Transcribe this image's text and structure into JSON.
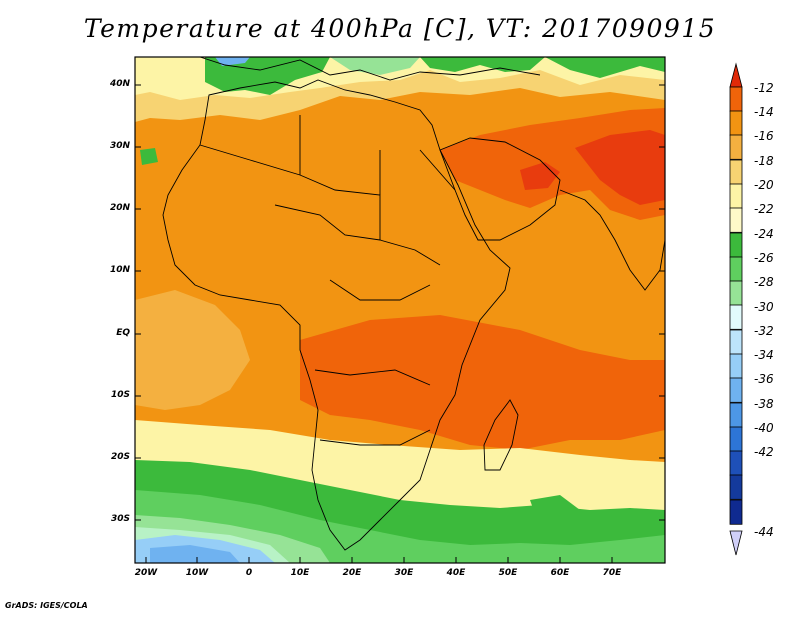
{
  "title": "Temperature at 400hPa [C], VT: 2017090915",
  "credit": "GrADS: IGES/COLA",
  "latitude_labels": [
    "40N",
    "30N",
    "20N",
    "10N",
    "EQ",
    "10S",
    "20S",
    "30S"
  ],
  "longitude_labels": [
    "20W",
    "10W",
    "0",
    "10E",
    "20E",
    "30E",
    "40E",
    "50E",
    "60E",
    "70E"
  ],
  "colorbar": {
    "labels": [
      "-12",
      "-14",
      "-16",
      "-18",
      "-20",
      "-22",
      "-24",
      "-26",
      "-28",
      "-30",
      "-32",
      "-34",
      "-36",
      "-38",
      "-40",
      "-42",
      "-44"
    ],
    "colors": [
      "#e83c0e",
      "#f0640a",
      "#f29412",
      "#f4b040",
      "#f7d372",
      "#fdf4a6",
      "#3cba3c",
      "#5fcf5f",
      "#96e396",
      "#b8f2c6",
      "#e2fbfc",
      "#bde4fb",
      "#96cef7",
      "#6fb2f0",
      "#4d97e6",
      "#2d75d6",
      "#1e50b8",
      "#0f2a90"
    ],
    "arrow_top_color": "#e02a08",
    "arrow_bottom_color": "#d0cff8"
  }
}
